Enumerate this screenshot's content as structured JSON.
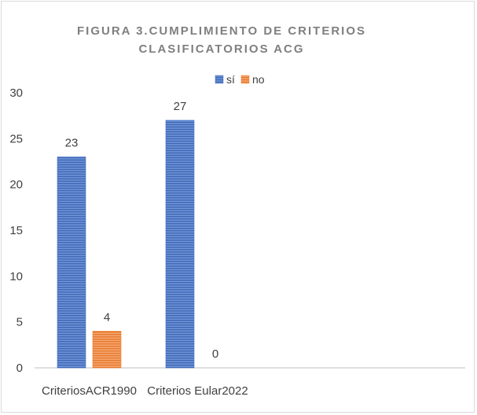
{
  "chart_data": {
    "type": "bar",
    "title_lines": [
      "FIGURA 3.CUMPLIMIENTO DE CRITERIOS",
      "CLASIFICATORIOS ACG"
    ],
    "categories": [
      "CriteriosACR1990",
      "Criterios Eular2022"
    ],
    "series": [
      {
        "name": "sí",
        "values": [
          23,
          27
        ],
        "color": "#4472c4"
      },
      {
        "name": "no",
        "values": [
          4,
          0
        ],
        "color": "#ed7d31"
      }
    ],
    "ylim": [
      0,
      30
    ],
    "yticks": [
      0,
      5,
      10,
      15,
      20,
      25,
      30
    ],
    "legend_position": "top",
    "grid": false
  }
}
